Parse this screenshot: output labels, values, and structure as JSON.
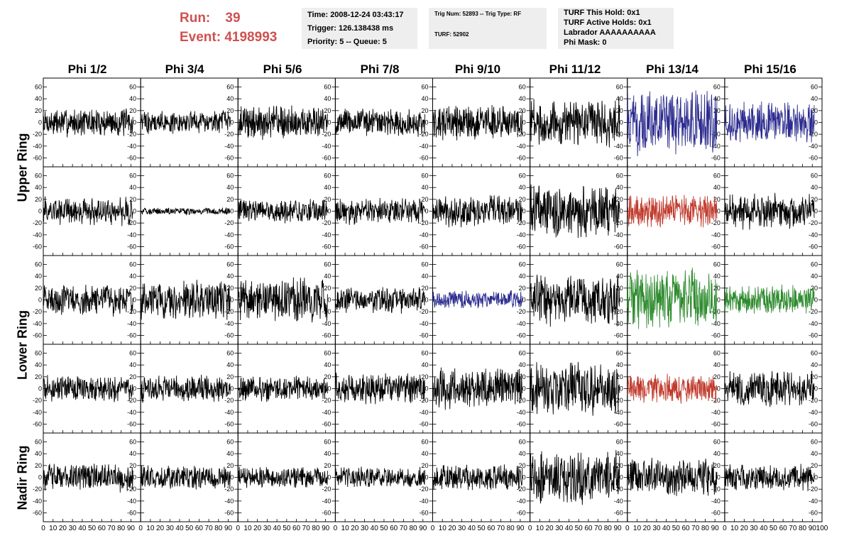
{
  "header": {
    "run_label": "Run:",
    "run_value": "39",
    "event_label": "Event:",
    "event_value": "4198993"
  },
  "info_box_1": {
    "time": "Time: 2008-12-24 03:43:17",
    "trigger": "Trigger: 126.138438 ms",
    "priority": "Priority: 5 -- Queue: 5"
  },
  "info_box_2": {
    "trig": "Trig Num: 52893 -- Trig Type: RF",
    "turf": "TURF: 52902"
  },
  "info_box_3": {
    "this_hold": "TURF This Hold: 0x1",
    "active_holds": "TURF Active Holds: 0x1",
    "labrador": "Labrador AAAAAAAAAA",
    "phi_mask": "Phi Mask: 0"
  },
  "chart_data": {
    "type": "line",
    "columns": [
      "Phi 1/2",
      "Phi 3/4",
      "Phi 5/6",
      "Phi 7/8",
      "Phi 9/10",
      "Phi 11/12",
      "Phi 13/14",
      "Phi 15/16"
    ],
    "rows": [
      "Upper Ring",
      "Lower Ring",
      "Nadir Ring"
    ],
    "panel_rows": 5,
    "xlim": [
      0,
      100
    ],
    "ylim": [
      -75,
      75
    ],
    "x_ticks": [
      0,
      10,
      20,
      30,
      40,
      50,
      60,
      70,
      80,
      90,
      100
    ],
    "y_ticks": [
      -60,
      -40,
      -20,
      0,
      20,
      40,
      60
    ],
    "last_x_tick_label": "100",
    "samples_per_trace": 256,
    "trace_end_x": 92,
    "colors": {
      "default": "#000000",
      "blue": "#2b2b8f",
      "red": "#c0392b",
      "green": "#2e8b2e"
    },
    "panels": [
      [
        {
          "amp": 12,
          "color": "default"
        },
        {
          "amp": 10,
          "color": "default"
        },
        {
          "amp": 14,
          "color": "default"
        },
        {
          "amp": 12,
          "color": "default"
        },
        {
          "amp": 15,
          "color": "default"
        },
        {
          "amp": 20,
          "color": "default"
        },
        {
          "amp": 26,
          "color": "blue"
        },
        {
          "amp": 17,
          "color": "blue"
        }
      ],
      [
        {
          "amp": 12,
          "color": "default"
        },
        {
          "amp": 3,
          "color": "default"
        },
        {
          "amp": 10,
          "color": "default"
        },
        {
          "amp": 11,
          "color": "default"
        },
        {
          "amp": 13,
          "color": "default"
        },
        {
          "amp": 22,
          "color": "default"
        },
        {
          "amp": 14,
          "color": "red"
        },
        {
          "amp": 15,
          "color": "default"
        }
      ],
      [
        {
          "amp": 13,
          "color": "default"
        },
        {
          "amp": 16,
          "color": "default"
        },
        {
          "amp": 18,
          "color": "default"
        },
        {
          "amp": 11,
          "color": "default"
        },
        {
          "amp": 8,
          "color": "blue"
        },
        {
          "amp": 22,
          "color": "default"
        },
        {
          "amp": 26,
          "color": "green"
        },
        {
          "amp": 12,
          "color": "green"
        }
      ],
      [
        {
          "amp": 11,
          "color": "default"
        },
        {
          "amp": 11,
          "color": "default"
        },
        {
          "amp": 11,
          "color": "default"
        },
        {
          "amp": 13,
          "color": "default"
        },
        {
          "amp": 17,
          "color": "default"
        },
        {
          "amp": 22,
          "color": "default"
        },
        {
          "amp": 13,
          "color": "red"
        },
        {
          "amp": 15,
          "color": "default"
        }
      ],
      [
        {
          "amp": 12,
          "color": "default"
        },
        {
          "amp": 10,
          "color": "default"
        },
        {
          "amp": 9,
          "color": "default"
        },
        {
          "amp": 9,
          "color": "default"
        },
        {
          "amp": 11,
          "color": "default"
        },
        {
          "amp": 22,
          "color": "default"
        },
        {
          "amp": 16,
          "color": "default"
        },
        {
          "amp": 11,
          "color": "default"
        }
      ]
    ]
  }
}
